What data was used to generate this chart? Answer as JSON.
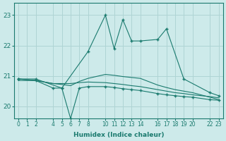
{
  "xlabel": "Humidex (Indice chaleur)",
  "bg_color": "#cdeaea",
  "grid_color": "#afd4d4",
  "line_color": "#1a7a6e",
  "xlim": [
    -0.5,
    23.5
  ],
  "ylim": [
    19.6,
    23.4
  ],
  "yticks": [
    20,
    21,
    22,
    23
  ],
  "xticks": [
    0,
    1,
    2,
    4,
    5,
    6,
    7,
    8,
    10,
    11,
    12,
    13,
    14,
    16,
    17,
    18,
    19,
    20,
    22,
    23
  ],
  "series": [
    {
      "x": [
        0,
        2,
        5,
        8,
        10,
        11,
        12,
        13,
        14,
        16,
        17,
        19,
        22,
        23
      ],
      "y": [
        20.9,
        20.9,
        20.6,
        21.8,
        23.0,
        21.9,
        22.85,
        22.15,
        22.15,
        22.2,
        22.55,
        20.9,
        20.45,
        20.35
      ],
      "marker": "+"
    },
    {
      "x": [
        0,
        2,
        4,
        5,
        6,
        7,
        8,
        10,
        11,
        12,
        13,
        14,
        16,
        17,
        18,
        19,
        20,
        22,
        23
      ],
      "y": [
        20.9,
        20.85,
        20.75,
        20.75,
        20.75,
        20.78,
        20.8,
        20.78,
        20.75,
        20.72,
        20.68,
        20.65,
        20.55,
        20.5,
        20.45,
        20.42,
        20.38,
        20.32,
        20.28
      ],
      "marker": null
    },
    {
      "x": [
        0,
        2,
        4,
        5,
        6,
        7,
        8,
        10,
        11,
        12,
        13,
        14,
        16,
        17,
        18,
        19,
        20,
        22,
        23
      ],
      "y": [
        20.9,
        20.85,
        20.6,
        20.6,
        19.6,
        20.6,
        20.65,
        20.65,
        20.62,
        20.58,
        20.55,
        20.52,
        20.42,
        20.38,
        20.35,
        20.32,
        20.3,
        20.22,
        20.2
      ],
      "marker": "+"
    },
    {
      "x": [
        0,
        2,
        4,
        5,
        6,
        7,
        8,
        10,
        11,
        12,
        13,
        14,
        16,
        17,
        18,
        19,
        20,
        22,
        23
      ],
      "y": [
        20.85,
        20.85,
        20.75,
        20.72,
        20.68,
        20.82,
        20.92,
        21.05,
        21.02,
        20.98,
        20.95,
        20.92,
        20.7,
        20.62,
        20.55,
        20.5,
        20.45,
        20.3,
        20.22
      ],
      "marker": null
    }
  ]
}
